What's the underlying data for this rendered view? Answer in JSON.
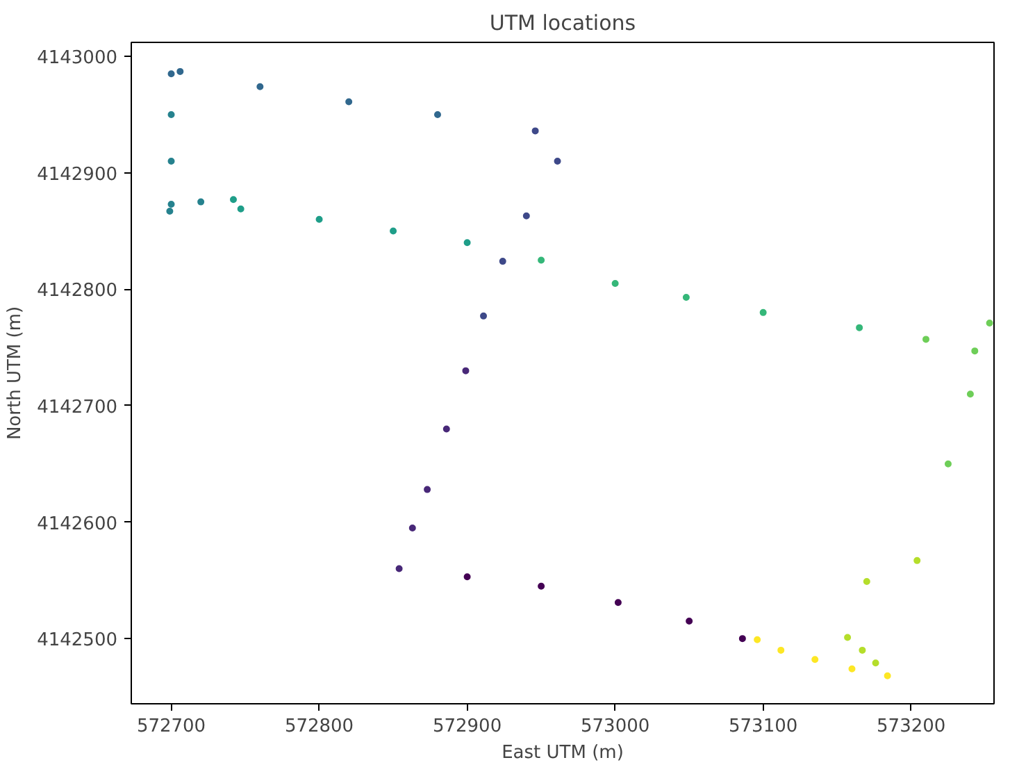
{
  "chart_data": {
    "type": "scatter",
    "title": "UTM locations",
    "xlabel": "East UTM (m)",
    "ylabel": "North UTM (m)",
    "x": [
      573086,
      573050,
      573002,
      572950,
      572900,
      572854,
      572863,
      572873,
      572886,
      572899,
      572911,
      572924,
      572940,
      572961,
      572946,
      572880,
      572820,
      572760,
      572706,
      572700,
      572700,
      572700,
      572700,
      572699,
      572720,
      572742,
      572747,
      572800,
      572850,
      572900,
      572950,
      573000,
      573048,
      573100,
      573165,
      573210,
      573243,
      573253,
      573240,
      573225,
      573204,
      573170,
      573157,
      573167,
      573176,
      573184,
      573160,
      573135,
      573112,
      573096
    ],
    "values": [
      4142500,
      4142515,
      4142531,
      4142545,
      4142553,
      4142560,
      4142595,
      4142628,
      4142680,
      4142730,
      4142777,
      4142824,
      4142863,
      4142910,
      4142936,
      4142950,
      4142961,
      4142974,
      4142987,
      4142985,
      4142950,
      4142910,
      4142873,
      4142867,
      4142875,
      4142877,
      4142869,
      4142860,
      4142850,
      4142840,
      4142825,
      4142805,
      4142793,
      4142780,
      4142767,
      4142757,
      4142747,
      4142771,
      4142710,
      4142650,
      4142567,
      4142549,
      4142501,
      4142490,
      4142479,
      4142468,
      4142474,
      4142482,
      4142490,
      4142499
    ],
    "colors": [
      "#440154",
      "#440154",
      "#440154",
      "#440154",
      "#440154",
      "#482878",
      "#482878",
      "#482878",
      "#482878",
      "#482878",
      "#3e4989",
      "#3e4989",
      "#3e4989",
      "#3e4989",
      "#3e4989",
      "#31688e",
      "#31688e",
      "#31688e",
      "#31688e",
      "#31688e",
      "#26828e",
      "#26828e",
      "#26828e",
      "#26828e",
      "#26828e",
      "#1f9e89",
      "#1f9e89",
      "#1f9e89",
      "#1f9e89",
      "#1f9e89",
      "#35b779",
      "#35b779",
      "#35b779",
      "#35b779",
      "#35b779",
      "#6ece58",
      "#6ece58",
      "#6ece58",
      "#6ece58",
      "#6ece58",
      "#b5de2b",
      "#b5de2b",
      "#b5de2b",
      "#b5de2b",
      "#b5de2b",
      "#fde725",
      "#fde725",
      "#fde725",
      "#fde725",
      "#fde725"
    ],
    "xlim": [
      572673,
      573256
    ],
    "ylim": [
      4142444,
      4143012
    ],
    "xticks": [
      572700,
      572800,
      572900,
      573000,
      573100,
      573200
    ],
    "yticks": [
      4142500,
      4142600,
      4142700,
      4142800,
      4142900,
      4143000
    ],
    "marker": "circle",
    "grid": false
  }
}
